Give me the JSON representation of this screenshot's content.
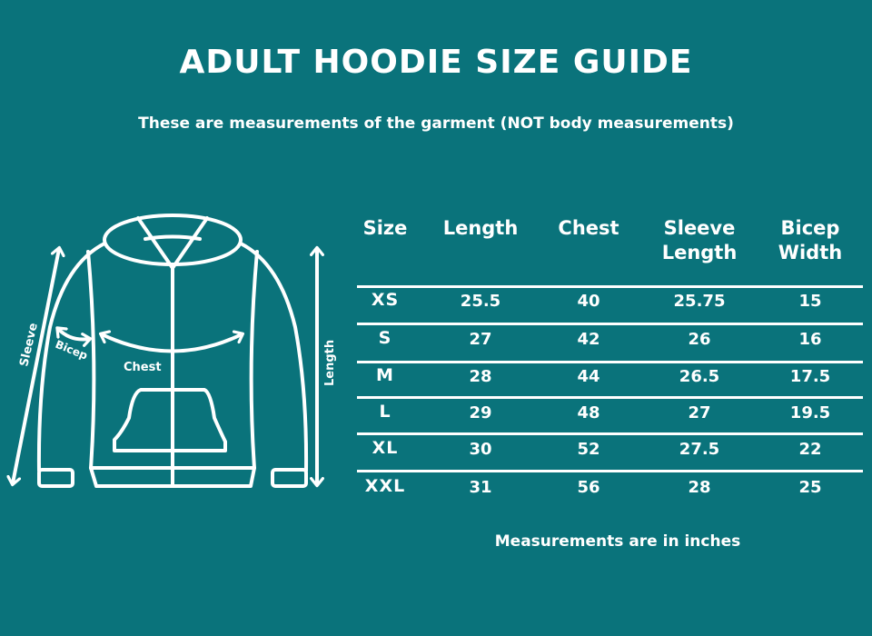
{
  "title": "ADULT HOODIE SIZE GUIDE",
  "subtitle": "These are measurements of the garment (NOT body measurements)",
  "diagram": {
    "labels": {
      "sleeve": "Sleeve",
      "bicep": "Bicep",
      "chest": "Chest",
      "length": "Length"
    }
  },
  "table": {
    "headers": [
      [
        "Size"
      ],
      [
        "Length"
      ],
      [
        "Chest"
      ],
      [
        "Sleeve",
        "Length"
      ],
      [
        "Bicep",
        "Width"
      ]
    ],
    "rows": [
      [
        "XS",
        "25.5",
        "40",
        "25.75",
        "15"
      ],
      [
        "S",
        "27",
        "42",
        "26",
        "16"
      ],
      [
        "M",
        "28",
        "44",
        "26.5",
        "17.5"
      ],
      [
        "L",
        "29",
        "48",
        "27",
        "19.5"
      ],
      [
        "XL",
        "30",
        "52",
        "27.5",
        "22"
      ],
      [
        "XXL",
        "31",
        "56",
        "28",
        "25"
      ]
    ]
  },
  "footnote": "Measurements are in inches",
  "colors": {
    "background": "#0a737b",
    "foreground": "#ffffff"
  }
}
